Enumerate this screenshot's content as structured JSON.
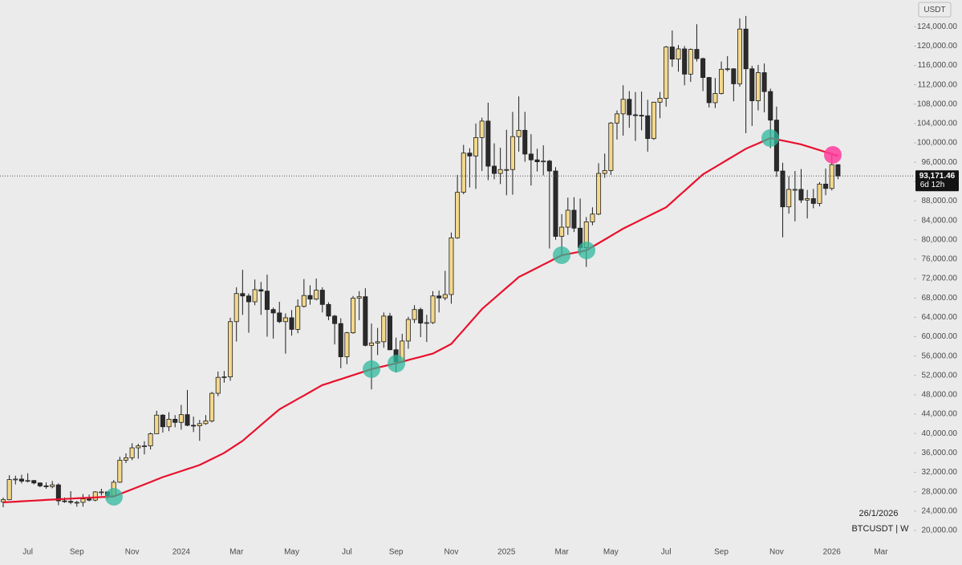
{
  "chart_data": {
    "type": "candlestick",
    "currency": "USDT",
    "date_label": "26/1/2026",
    "symbol_label": "BTCUSDT | W",
    "countdown": "6d 12h",
    "current_price": {
      "value": 93171.46,
      "label": "93,171.46"
    },
    "up_color": "#f3d88c",
    "down_color": "#2b2b2b",
    "ylim": [
      17500,
      129500
    ],
    "yticks": [
      {
        "value": 20000,
        "label": "20,000.00"
      },
      {
        "value": 24000,
        "label": "24,000.00"
      },
      {
        "value": 28000,
        "label": "28,000.00"
      },
      {
        "value": 32000,
        "label": "32,000.00"
      },
      {
        "value": 36000,
        "label": "36,000.00"
      },
      {
        "value": 40000,
        "label": "40,000.00"
      },
      {
        "value": 44000,
        "label": "44,000.00"
      },
      {
        "value": 48000,
        "label": "48,000.00"
      },
      {
        "value": 52000,
        "label": "52,000.00"
      },
      {
        "value": 56000,
        "label": "56,000.00"
      },
      {
        "value": 60000,
        "label": "60,000.00"
      },
      {
        "value": 64000,
        "label": "64,000.00"
      },
      {
        "value": 68000,
        "label": "68,000.00"
      },
      {
        "value": 72000,
        "label": "72,000.00"
      },
      {
        "value": 76000,
        "label": "76,000.00"
      },
      {
        "value": 80000,
        "label": "80,000.00"
      },
      {
        "value": 84000,
        "label": "84,000.00"
      },
      {
        "value": 88000,
        "label": "88,000.00"
      },
      {
        "value": 92000,
        "label": "92,000.00"
      },
      {
        "value": 96000,
        "label": "96,000.00"
      },
      {
        "value": 100000,
        "label": "100,000.00"
      },
      {
        "value": 104000,
        "label": "104,000.00"
      },
      {
        "value": 108000,
        "label": "108,000.00"
      },
      {
        "value": 112000,
        "label": "112,000.00"
      },
      {
        "value": 116000,
        "label": "116,000.00"
      },
      {
        "value": 120000,
        "label": "120,000.00"
      },
      {
        "value": 124000,
        "label": "124,000.00"
      }
    ],
    "categories": [
      null,
      null,
      null,
      null,
      "Jul",
      null,
      null,
      null,
      null,
      null,
      null,
      null,
      "Sep",
      null,
      null,
      null,
      null,
      null,
      null,
      null,
      null,
      "Nov",
      null,
      null,
      null,
      null,
      null,
      null,
      null,
      "2024",
      null,
      null,
      null,
      null,
      null,
      null,
      null,
      null,
      "Mar",
      null,
      null,
      null,
      null,
      null,
      null,
      null,
      null,
      "May",
      null,
      null,
      null,
      null,
      null,
      null,
      null,
      null,
      "Jul",
      null,
      null,
      null,
      null,
      null,
      null,
      null,
      "Sep",
      null,
      null,
      null,
      null,
      null,
      null,
      null,
      null,
      "Nov",
      null,
      null,
      null,
      null,
      null,
      null,
      null,
      null,
      "2025",
      null,
      null,
      null,
      null,
      null,
      null,
      null,
      null,
      "Mar",
      null,
      null,
      null,
      null,
      null,
      null,
      null,
      "May",
      null,
      null,
      null,
      null,
      null,
      null,
      null,
      null,
      "Jul",
      null,
      null,
      null,
      null,
      null,
      null,
      null,
      null,
      "Sep",
      null,
      null,
      null,
      null,
      null,
      null,
      null,
      null,
      "Nov",
      null,
      null,
      null,
      null,
      null,
      null,
      null,
      null,
      "2026",
      null,
      null,
      null,
      null,
      null,
      null,
      null,
      "Mar"
    ],
    "ohlc": [
      [
        25900,
        26800,
        24800,
        26350
      ],
      [
        26350,
        31400,
        26250,
        30500
      ],
      [
        30500,
        31300,
        29500,
        30600
      ],
      [
        30600,
        31500,
        29700,
        30170
      ],
      [
        30170,
        31800,
        29900,
        30300
      ],
      [
        30300,
        30400,
        29500,
        29800
      ],
      [
        29800,
        29900,
        28900,
        29200
      ],
      [
        29200,
        29900,
        28600,
        29050
      ],
      [
        29050,
        30200,
        28700,
        29400
      ],
      [
        29400,
        29700,
        25200,
        26100
      ],
      [
        26100,
        26800,
        25700,
        26000
      ],
      [
        26000,
        28100,
        25400,
        25800
      ],
      [
        25800,
        26100,
        24900,
        25800
      ],
      [
        25800,
        27500,
        24900,
        26500
      ],
      [
        26500,
        27400,
        26000,
        26250
      ],
      [
        26250,
        28100,
        26000,
        27950
      ],
      [
        27950,
        28600,
        27200,
        27950
      ],
      [
        27950,
        28000,
        26500,
        27150
      ],
      [
        27150,
        30400,
        26900,
        29950
      ],
      [
        29950,
        35200,
        29800,
        34500
      ],
      [
        34500,
        35900,
        33900,
        35000
      ],
      [
        35000,
        38000,
        34500,
        37050
      ],
      [
        37050,
        37900,
        34800,
        37450
      ],
      [
        37450,
        38400,
        35700,
        37450
      ],
      [
        37450,
        40200,
        36700,
        39950
      ],
      [
        39950,
        44700,
        39900,
        43800
      ],
      [
        43800,
        44000,
        40200,
        41400
      ],
      [
        41400,
        44400,
        40500,
        42950
      ],
      [
        42950,
        43800,
        41300,
        42300
      ],
      [
        42300,
        45900,
        40800,
        43900
      ],
      [
        43900,
        49000,
        41500,
        41700
      ],
      [
        41700,
        43500,
        40300,
        41600
      ],
      [
        41600,
        42800,
        38500,
        42050
      ],
      [
        42050,
        43800,
        41800,
        42600
      ],
      [
        42600,
        48600,
        42300,
        48300
      ],
      [
        48300,
        52800,
        47700,
        51600
      ],
      [
        51600,
        52900,
        50500,
        51700
      ],
      [
        51700,
        63900,
        50900,
        63100
      ],
      [
        63100,
        70200,
        59000,
        68900
      ],
      [
        68900,
        73800,
        64500,
        68400
      ],
      [
        68400,
        68900,
        60800,
        67200
      ],
      [
        67200,
        71800,
        66500,
        69700
      ],
      [
        69700,
        71300,
        64500,
        69400
      ],
      [
        69400,
        72800,
        60000,
        65600
      ],
      [
        65600,
        66000,
        59600,
        64900
      ],
      [
        64900,
        67200,
        62800,
        63100
      ],
      [
        63100,
        64800,
        56500,
        63900
      ],
      [
        63900,
        65500,
        60200,
        61500
      ],
      [
        61500,
        67700,
        60700,
        66250
      ],
      [
        66250,
        71900,
        66000,
        68500
      ],
      [
        68500,
        70600,
        66600,
        67750
      ],
      [
        67750,
        72000,
        67500,
        69600
      ],
      [
        69600,
        70200,
        65000,
        66650
      ],
      [
        66650,
        67100,
        63400,
        64250
      ],
      [
        64250,
        64500,
        58400,
        62700
      ],
      [
        62700,
        63800,
        53500,
        55850
      ],
      [
        55850,
        61000,
        54300,
        60800
      ],
      [
        60800,
        68400,
        60600,
        67950
      ],
      [
        67950,
        69400,
        63400,
        68250
      ],
      [
        68250,
        70000,
        58000,
        58200
      ],
      [
        58200,
        62700,
        49100,
        58700
      ],
      [
        58700,
        61800,
        56200,
        58950
      ],
      [
        58950,
        65000,
        57700,
        64250
      ],
      [
        64250,
        64900,
        57200,
        57300
      ],
      [
        57300,
        59800,
        52600,
        54800
      ],
      [
        54800,
        60600,
        54600,
        59100
      ],
      [
        59100,
        64100,
        57500,
        63550
      ],
      [
        63550,
        66500,
        62800,
        65600
      ],
      [
        65600,
        66000,
        59900,
        62800
      ],
      [
        62800,
        64500,
        58900,
        62900
      ],
      [
        62900,
        69400,
        62600,
        68400
      ],
      [
        68400,
        69500,
        65000,
        68000
      ],
      [
        68000,
        73600,
        67500,
        68700
      ],
      [
        68700,
        81500,
        66800,
        80400
      ],
      [
        80400,
        93400,
        80200,
        89800
      ],
      [
        89800,
        99600,
        89400,
        97900
      ],
      [
        97900,
        98900,
        90800,
        97300
      ],
      [
        97300,
        104000,
        90500,
        101100
      ],
      [
        101100,
        105200,
        94200,
        104500
      ],
      [
        104500,
        108300,
        92300,
        95200
      ],
      [
        95200,
        99900,
        92500,
        93700
      ],
      [
        93700,
        99000,
        91500,
        94500
      ],
      [
        94500,
        102700,
        89200,
        94500
      ],
      [
        94500,
        106400,
        89300,
        101300
      ],
      [
        101300,
        109600,
        98200,
        102600
      ],
      [
        102600,
        106400,
        96100,
        97700
      ],
      [
        97700,
        101800,
        91200,
        96500
      ],
      [
        96500,
        98800,
        94100,
        96100
      ],
      [
        96100,
        99500,
        93300,
        96250
      ],
      [
        96250,
        96500,
        78200,
        94200
      ],
      [
        94200,
        95000,
        80000,
        80700
      ],
      [
        80700,
        85300,
        76600,
        82600
      ],
      [
        82600,
        88700,
        81000,
        86100
      ],
      [
        86100,
        88800,
        81600,
        82400
      ],
      [
        82400,
        88500,
        77000,
        78400
      ],
      [
        78400,
        84700,
        74400,
        83700
      ],
      [
        83700,
        86700,
        83000,
        85300
      ],
      [
        85300,
        95800,
        85100,
        93700
      ],
      [
        93700,
        97800,
        92800,
        94300
      ],
      [
        94300,
        104300,
        93400,
        104100
      ],
      [
        104100,
        106700,
        100700,
        106000
      ],
      [
        106000,
        111900,
        101500,
        109000
      ],
      [
        109000,
        110700,
        103100,
        105800
      ],
      [
        105800,
        110500,
        100400,
        105700
      ],
      [
        105700,
        110600,
        102600,
        105600
      ],
      [
        105600,
        108900,
        98200,
        100900
      ],
      [
        100900,
        108500,
        100600,
        108400
      ],
      [
        108400,
        110500,
        105100,
        109200
      ],
      [
        109200,
        120000,
        107500,
        119800
      ],
      [
        119800,
        123200,
        115700,
        117300
      ],
      [
        117300,
        120200,
        114700,
        119400
      ],
      [
        119400,
        120000,
        111900,
        114200
      ],
      [
        114200,
        119500,
        112600,
        119300
      ],
      [
        119300,
        124500,
        116800,
        117400
      ],
      [
        117400,
        117600,
        110700,
        113500
      ],
      [
        113500,
        113600,
        107300,
        108300
      ],
      [
        108300,
        113400,
        107200,
        110200
      ],
      [
        110200,
        116800,
        110000,
        115200
      ],
      [
        115200,
        117900,
        114800,
        115300
      ],
      [
        115300,
        115400,
        108600,
        112200
      ],
      [
        112200,
        125700,
        111600,
        123500
      ],
      [
        123500,
        126200,
        102000,
        115300
      ],
      [
        115300,
        115900,
        103500,
        108700
      ],
      [
        108700,
        116100,
        106700,
        114500
      ],
      [
        114500,
        116400,
        106300,
        110600
      ],
      [
        110600,
        111200,
        98900,
        104700
      ],
      [
        104700,
        107500,
        93000,
        94200
      ],
      [
        94200,
        95900,
        80500,
        86800
      ],
      [
        86800,
        93100,
        85400,
        90400
      ],
      [
        90400,
        94200,
        83800,
        90400
      ],
      [
        90400,
        94600,
        87600,
        88200
      ],
      [
        88200,
        90300,
        84400,
        88500
      ],
      [
        88500,
        90500,
        86500,
        87500
      ],
      [
        87500,
        91900,
        86900,
        91500
      ],
      [
        91500,
        94700,
        89200,
        90600
      ],
      [
        90600,
        97900,
        90200,
        95500
      ],
      [
        95500,
        95600,
        92500,
        93171.46
      ],
      null,
      null,
      null,
      null,
      null,
      null,
      null
    ],
    "ma": {
      "color": "#e8112d",
      "values": [
        25800,
        25870,
        25940,
        26010,
        26080,
        26150,
        26220,
        26290,
        26360,
        26430,
        26500,
        26560,
        26630,
        26690,
        26750,
        26810,
        26880,
        26940,
        27000,
        27500,
        28000,
        28500,
        29000,
        29500,
        30000,
        30500,
        31000,
        31420,
        31830,
        32250,
        32670,
        33080,
        33500,
        34130,
        34750,
        35380,
        36000,
        36830,
        37670,
        38500,
        39580,
        40670,
        41750,
        42830,
        43920,
        45000,
        45710,
        46430,
        47140,
        47860,
        48570,
        49290,
        50000,
        50410,
        50830,
        51240,
        51650,
        52060,
        52480,
        52890,
        53300,
        53600,
        53900,
        54200,
        54500,
        54830,
        55170,
        55500,
        55830,
        56170,
        56500,
        57170,
        57830,
        58500,
        59940,
        61380,
        62820,
        64260,
        65700,
        66800,
        67900,
        69000,
        70100,
        71200,
        72300,
        72940,
        73590,
        74230,
        74870,
        75510,
        76160,
        76800,
        77050,
        77300,
        77550,
        77800,
        78550,
        79300,
        80050,
        80800,
        81550,
        82300,
        82930,
        83560,
        84190,
        84810,
        85440,
        86070,
        86700,
        87830,
        88970,
        90100,
        91230,
        92370,
        93500,
        94260,
        95010,
        95770,
        96530,
        97290,
        98040,
        98800,
        99350,
        99900,
        100450,
        101000,
        100740,
        100480,
        100220,
        99960,
        99700,
        99300,
        98900,
        98500,
        98100,
        97700,
        97300,
        null,
        null,
        null,
        null,
        null,
        null,
        null
      ]
    }
  }
}
